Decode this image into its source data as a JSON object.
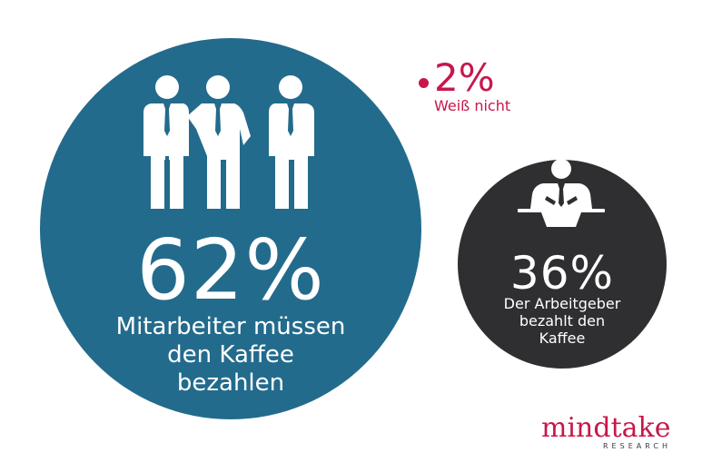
{
  "chart_data": {
    "type": "bubble",
    "items": [
      {
        "value": 62,
        "value_label": "62%",
        "label": "Mitarbeiter müssen den Kaffee bezahlen",
        "label_lines": [
          "Mitarbeiter müssen",
          "den Kaffee",
          "bezahlen"
        ],
        "color": "#236b8c",
        "icon": "three-businessmen-icon"
      },
      {
        "value": 36,
        "value_label": "36%",
        "label": "Der Arbeitgeber bezahlt den Kaffee",
        "label_lines": [
          "Der Arbeitgeber",
          "bezahlt den",
          "Kaffee"
        ],
        "color": "#2f2f31",
        "icon": "boss-at-desk-icon"
      },
      {
        "value": 2,
        "value_label": "2%",
        "label": "Weiß nicht",
        "color": "#c8174b"
      }
    ]
  },
  "logo": {
    "word": "mindtake",
    "sub": "RESEARCH"
  }
}
